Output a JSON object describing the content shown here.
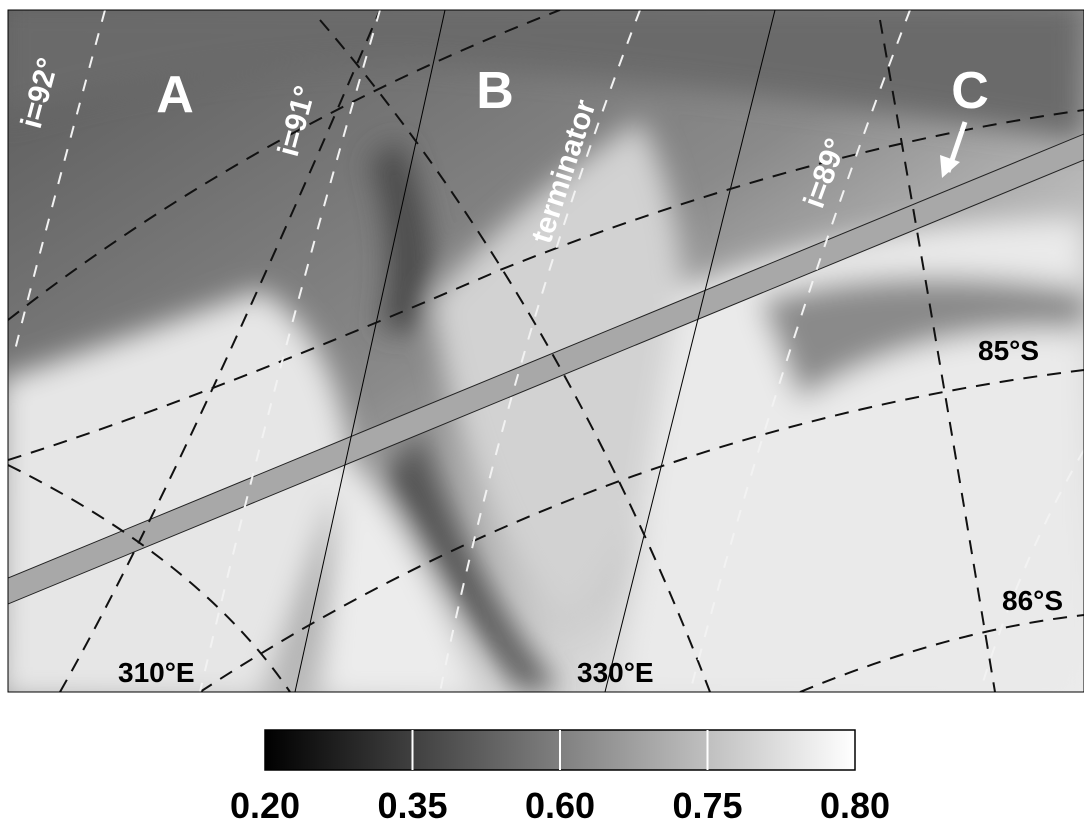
{
  "map": {
    "regions": [
      "A",
      "B",
      "C"
    ],
    "terminator": "terminator",
    "inclinations": [
      "i=92°",
      "i=91°",
      "i=89°"
    ],
    "latitudes": [
      "85°S",
      "86°S"
    ],
    "longitudes": [
      "310°E",
      "330°E"
    ],
    "colorbar_labels": [
      "0.20",
      "0.35",
      "0.60",
      "0.75",
      "0.80"
    ]
  }
}
